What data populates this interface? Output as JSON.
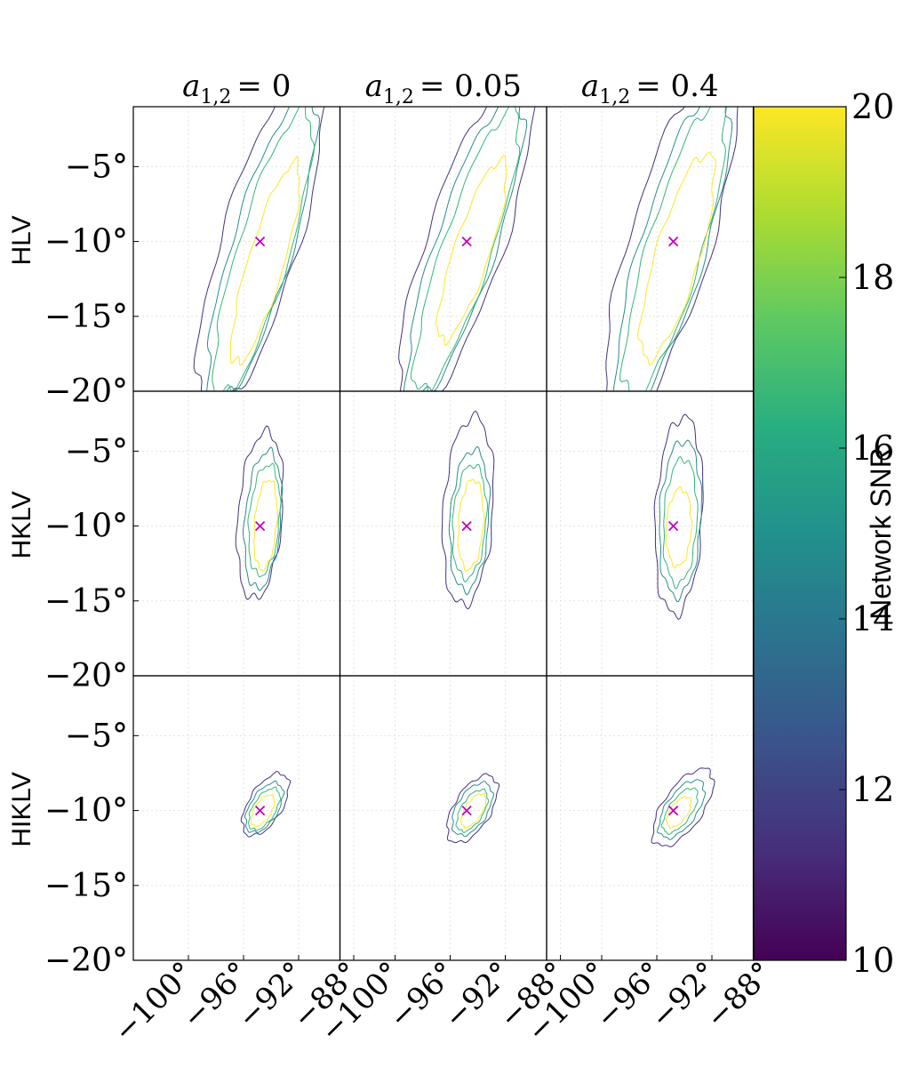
{
  "chart_data": {
    "type": "contour",
    "columns": [
      {
        "label_prefix": "a",
        "label_subscript": "1,2",
        "label_value": "= 0"
      },
      {
        "label_prefix": "a",
        "label_subscript": "1,2",
        "label_value": "= 0.05"
      },
      {
        "label_prefix": "a",
        "label_subscript": "1,2",
        "label_value": "= 0.4"
      }
    ],
    "rows": [
      {
        "label": "HLV"
      },
      {
        "label": "HKLV"
      },
      {
        "label": "HIKLV"
      }
    ],
    "x_ticks": [
      {
        "value": -100,
        "label": "−100°"
      },
      {
        "value": -96,
        "label": "−96°"
      },
      {
        "value": -92,
        "label": "−92°"
      },
      {
        "value": -88,
        "label": "−88°"
      }
    ],
    "y_ticks": [
      {
        "value": -5,
        "label": "−5°"
      },
      {
        "value": -10,
        "label": "−10°"
      },
      {
        "value": -15,
        "label": "−15°"
      },
      {
        "value": -20,
        "label": "−20°"
      }
    ],
    "xlim": [
      -104,
      -89
    ],
    "ylim": [
      -20,
      -1
    ],
    "grid": true,
    "injection": {
      "x": -94.8,
      "y": -10,
      "marker": "x",
      "color": "#c000c0"
    },
    "contour_levels": [
      {
        "level": 11.5,
        "color": "#46327e"
      },
      {
        "level": 14.5,
        "color": "#2a8d8a"
      },
      {
        "level": 16.5,
        "color": "#35b779"
      },
      {
        "level": 19.5,
        "color": "#fde725"
      }
    ],
    "panels": [
      {
        "row": 0,
        "col": 0,
        "contours": [
          {
            "cx": -94.8,
            "cy": -10.0,
            "a": 2.8,
            "b": 12.2,
            "tilt": 18,
            "color": "#46327e"
          },
          {
            "cx": -94.7,
            "cy": -10.5,
            "a": 2.2,
            "b": 10.8,
            "tilt": 18,
            "color": "#2a8d8a"
          },
          {
            "cx": -94.6,
            "cy": -10.8,
            "a": 1.9,
            "b": 10.0,
            "tilt": 18,
            "color": "#35b779"
          },
          {
            "cx": -94.4,
            "cy": -11.5,
            "a": 1.3,
            "b": 7.0,
            "tilt": 18,
            "color": "#fde725"
          }
        ]
      },
      {
        "row": 0,
        "col": 1,
        "contours": [
          {
            "cx": -94.9,
            "cy": -10.0,
            "a": 2.8,
            "b": 12.0,
            "tilt": 20,
            "color": "#46327e"
          },
          {
            "cx": -94.9,
            "cy": -10.3,
            "a": 2.2,
            "b": 10.8,
            "tilt": 20,
            "color": "#2a8d8a"
          },
          {
            "cx": -94.8,
            "cy": -10.6,
            "a": 1.8,
            "b": 10.0,
            "tilt": 20,
            "color": "#35b779"
          },
          {
            "cx": -94.4,
            "cy": -10.6,
            "a": 1.3,
            "b": 6.4,
            "tilt": 20,
            "color": "#fde725"
          }
        ]
      },
      {
        "row": 0,
        "col": 2,
        "contours": [
          {
            "cx": -95.0,
            "cy": -10.0,
            "a": 3.0,
            "b": 12.4,
            "tilt": 18,
            "color": "#46327e"
          },
          {
            "cx": -94.8,
            "cy": -10.3,
            "a": 2.4,
            "b": 11.2,
            "tilt": 18,
            "color": "#2a8d8a"
          },
          {
            "cx": -94.7,
            "cy": -10.5,
            "a": 2.0,
            "b": 10.3,
            "tilt": 18,
            "color": "#35b779"
          },
          {
            "cx": -94.5,
            "cy": -11.0,
            "a": 1.6,
            "b": 7.2,
            "tilt": 18,
            "color": "#fde725"
          }
        ]
      },
      {
        "row": 1,
        "col": 0,
        "contours": [
          {
            "cx": -94.8,
            "cy": -9.3,
            "a": 1.6,
            "b": 5.6,
            "tilt": 5,
            "color": "#46327e"
          },
          {
            "cx": -94.6,
            "cy": -9.6,
            "a": 1.3,
            "b": 4.6,
            "tilt": 5,
            "color": "#2a8d8a"
          },
          {
            "cx": -94.5,
            "cy": -9.6,
            "a": 1.1,
            "b": 3.7,
            "tilt": 5,
            "color": "#35b779"
          },
          {
            "cx": -94.4,
            "cy": -9.9,
            "a": 0.8,
            "b": 3.0,
            "tilt": 5,
            "color": "#fde725"
          }
        ]
      },
      {
        "row": 1,
        "col": 1,
        "contours": [
          {
            "cx": -94.7,
            "cy": -9.0,
            "a": 1.8,
            "b": 6.3,
            "tilt": 4,
            "color": "#46327e"
          },
          {
            "cx": -94.6,
            "cy": -9.6,
            "a": 1.4,
            "b": 4.7,
            "tilt": 4,
            "color": "#2a8d8a"
          },
          {
            "cx": -94.6,
            "cy": -9.7,
            "a": 1.2,
            "b": 3.8,
            "tilt": 4,
            "color": "#35b779"
          },
          {
            "cx": -94.5,
            "cy": -9.9,
            "a": 0.9,
            "b": 3.0,
            "tilt": 4,
            "color": "#fde725"
          }
        ]
      },
      {
        "row": 1,
        "col": 2,
        "contours": [
          {
            "cx": -94.4,
            "cy": -9.3,
            "a": 1.7,
            "b": 6.6,
            "tilt": 3,
            "color": "#46327e"
          },
          {
            "cx": -94.3,
            "cy": -9.5,
            "a": 1.5,
            "b": 5.2,
            "tilt": 3,
            "color": "#2a8d8a"
          },
          {
            "cx": -94.3,
            "cy": -9.7,
            "a": 1.2,
            "b": 4.2,
            "tilt": 3,
            "color": "#35b779"
          },
          {
            "cx": -94.4,
            "cy": -10.1,
            "a": 0.9,
            "b": 2.6,
            "tilt": 3,
            "color": "#fde725"
          }
        ]
      },
      {
        "row": 2,
        "col": 0,
        "contours": [
          {
            "cx": -94.4,
            "cy": -9.6,
            "a": 1.2,
            "b": 2.4,
            "tilt": 35,
            "color": "#46327e"
          },
          {
            "cx": -94.5,
            "cy": -9.8,
            "a": 1.0,
            "b": 1.9,
            "tilt": 35,
            "color": "#2a8d8a"
          },
          {
            "cx": -94.5,
            "cy": -9.9,
            "a": 0.8,
            "b": 1.6,
            "tilt": 35,
            "color": "#35b779"
          },
          {
            "cx": -94.6,
            "cy": -10.0,
            "a": 0.6,
            "b": 1.2,
            "tilt": 35,
            "color": "#fde725"
          }
        ]
      },
      {
        "row": 2,
        "col": 1,
        "contours": [
          {
            "cx": -94.4,
            "cy": -9.9,
            "a": 1.3,
            "b": 2.6,
            "tilt": 35,
            "color": "#46327e"
          },
          {
            "cx": -94.4,
            "cy": -9.9,
            "a": 1.1,
            "b": 2.0,
            "tilt": 35,
            "color": "#2a8d8a"
          },
          {
            "cx": -94.4,
            "cy": -10.0,
            "a": 0.8,
            "b": 1.6,
            "tilt": 35,
            "color": "#35b779"
          },
          {
            "cx": -94.3,
            "cy": -10.0,
            "a": 0.6,
            "b": 1.3,
            "tilt": 35,
            "color": "#fde725"
          }
        ]
      },
      {
        "row": 2,
        "col": 2,
        "contours": [
          {
            "cx": -94.1,
            "cy": -9.8,
            "a": 1.4,
            "b": 3.1,
            "tilt": 38,
            "color": "#46327e"
          },
          {
            "cx": -94.2,
            "cy": -9.9,
            "a": 1.1,
            "b": 2.3,
            "tilt": 38,
            "color": "#2a8d8a"
          },
          {
            "cx": -94.3,
            "cy": -10.0,
            "a": 0.8,
            "b": 1.8,
            "tilt": 38,
            "color": "#35b779"
          },
          {
            "cx": -94.4,
            "cy": -10.1,
            "a": 0.6,
            "b": 1.2,
            "tilt": 38,
            "color": "#fde725"
          }
        ]
      }
    ],
    "colorbar": {
      "label": "Network SNR",
      "min": 10,
      "max": 20,
      "ticks": [
        {
          "value": 10,
          "label": "10"
        },
        {
          "value": 12,
          "label": "12"
        },
        {
          "value": 14,
          "label": "14"
        },
        {
          "value": 16,
          "label": "16"
        },
        {
          "value": 18,
          "label": "18"
        },
        {
          "value": 20,
          "label": "20"
        }
      ],
      "colormap": [
        "#440154",
        "#472d7b",
        "#3b528b",
        "#2c728e",
        "#21918c",
        "#28ae80",
        "#5ec962",
        "#addc30",
        "#fde725"
      ]
    }
  }
}
